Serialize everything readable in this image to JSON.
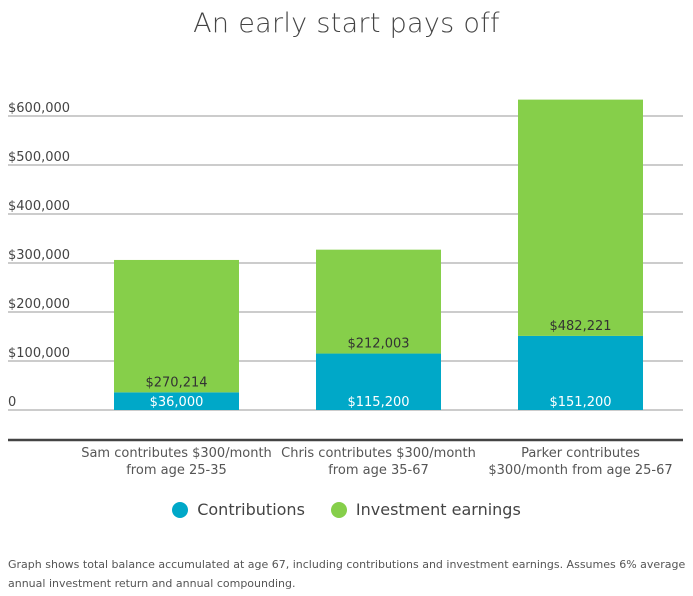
{
  "chart_data": {
    "type": "bar",
    "stacked": true,
    "title": "An early start pays off",
    "categories": [
      [
        "Sam contributes $300/month",
        "from age 25-35"
      ],
      [
        "Chris contributes $300/month",
        "from age 35-67"
      ],
      [
        "Parker contributes",
        "$300/month from age 25-67"
      ]
    ],
    "series": [
      {
        "name": "Contributions",
        "color": "#00a8c8",
        "values": [
          36000,
          115200,
          151200
        ],
        "labels": [
          "$36,000",
          "$115,200",
          "$151,200"
        ]
      },
      {
        "name": "Investment earnings",
        "color": "#86cf4a",
        "values": [
          270214,
          212003,
          482221
        ],
        "labels": [
          "$270,214",
          "$212,003",
          "$482,221"
        ]
      }
    ],
    "yticks": [
      0,
      100000,
      200000,
      300000,
      400000,
      500000,
      600000
    ],
    "ytick_labels": [
      "0",
      "$100,000",
      "$200,000",
      "$300,000",
      "$400,000",
      "$500,000",
      "$600,000"
    ],
    "ylim": [
      0,
      600000
    ],
    "grid": true,
    "legend": "bottom-center"
  },
  "footnote": "Graph shows total balance accumulated at age 67, including contributions and investment earnings. Assumes 6% average annual investment return and annual compounding."
}
